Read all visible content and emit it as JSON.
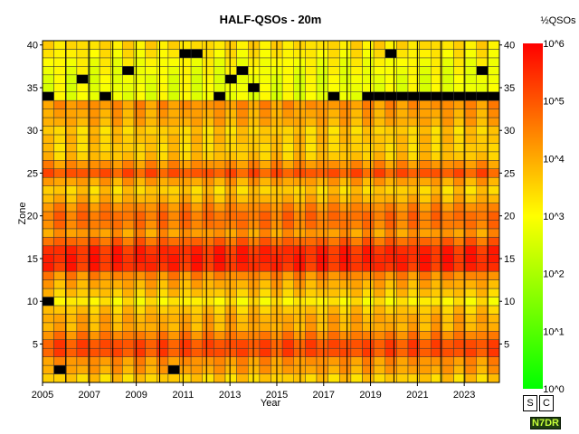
{
  "chart_data": {
    "type": "heatmap",
    "title": "HALF-QSOs - 20m",
    "xlabel": "Year",
    "ylabel": "Zone",
    "x_years": [
      2005,
      2024.5
    ],
    "x_ticks": [
      "2005",
      "2007",
      "2009",
      "2011",
      "2013",
      "2015",
      "2017",
      "2019",
      "2021",
      "2023"
    ],
    "zones": [
      1,
      40
    ],
    "y_ticks": [
      "5",
      "10",
      "15",
      "20",
      "25",
      "30",
      "35",
      "40"
    ],
    "period_columns": 40,
    "color_scale": {
      "label": "½QSOs",
      "log10_range": [
        0,
        6
      ],
      "ticks": [
        "10^0",
        "10^1",
        "10^2",
        "10^3",
        "10^4",
        "10^5",
        "10^6"
      ],
      "colors": [
        "#00ff00",
        "#ffff00",
        "#ff0000"
      ]
    },
    "zone_levels_log10": {
      "1": 3.6,
      "2": 4.1,
      "3": 4.3,
      "4": 5.1,
      "5": 5.1,
      "6": 4.5,
      "7": 4.0,
      "8": 4.0,
      "9": 3.7,
      "10": 3.2,
      "11": 3.7,
      "12": 4.0,
      "13": 4.4,
      "14": 5.5,
      "15": 5.6,
      "16": 5.5,
      "17": 4.8,
      "18": 4.2,
      "19": 4.6,
      "20": 4.7,
      "21": 4.4,
      "22": 3.9,
      "23": 3.6,
      "24": 4.1,
      "25": 5.0,
      "26": 4.3,
      "27": 3.7,
      "28": 3.6,
      "29": 3.7,
      "30": 3.6,
      "31": 4.0,
      "32": 4.1,
      "33": 4.3,
      "34": 2.8,
      "35": 2.8,
      "36": 2.8,
      "37": 2.9,
      "38": 3.0,
      "39": 3.2,
      "40": 3.4
    },
    "no_data_cells": [
      [
        10,
        1
      ],
      [
        2,
        2
      ],
      [
        2,
        12
      ],
      [
        34,
        1
      ],
      [
        34,
        6
      ],
      [
        34,
        16
      ],
      [
        34,
        26
      ],
      [
        34,
        36
      ],
      [
        34,
        38
      ],
      [
        34,
        40
      ],
      [
        35,
        19
      ],
      [
        36,
        4
      ],
      [
        36,
        17
      ],
      [
        37,
        8
      ],
      [
        37,
        18
      ],
      [
        39,
        13
      ],
      [
        39,
        14
      ],
      [
        39,
        31
      ],
      [
        37,
        39
      ]
    ],
    "no_data_row34_from_column": 29
  },
  "controls": {
    "s_label": "S",
    "c_label": "C"
  },
  "badge": "N7DR"
}
